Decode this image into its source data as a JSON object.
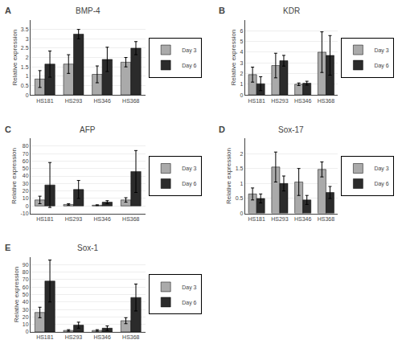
{
  "chart_data": [
    {
      "type": "bar",
      "title": "BMP-4",
      "annotation": "A",
      "categories": [
        "HS181",
        "HS293",
        "HS346",
        "HS368"
      ],
      "series": [
        {
          "name": "Day 3",
          "color": "#aaaaaa",
          "values": [
            0.85,
            1.65,
            1.1,
            1.75
          ],
          "errors": [
            0.45,
            0.5,
            0.45,
            0.25
          ]
        },
        {
          "name": "Day 6",
          "color": "#2b2b2b",
          "values": [
            1.65,
            3.25,
            1.9,
            2.5
          ],
          "errors": [
            0.7,
            0.25,
            0.65,
            0.35
          ]
        }
      ],
      "ylabel": "Relative expression",
      "ylim": [
        0,
        4
      ],
      "yticks": [
        0,
        0.5,
        1.0,
        1.5,
        2.0,
        2.5,
        3.0,
        3.5
      ],
      "grid": true,
      "legend": "right"
    },
    {
      "type": "bar",
      "title": "KDR",
      "annotation": "B",
      "categories": [
        "HS181",
        "HS293",
        "HS346",
        "HS368"
      ],
      "series": [
        {
          "name": "Day 3",
          "color": "#aaaaaa",
          "values": [
            1.9,
            2.75,
            1.0,
            4.0
          ],
          "errors": [
            0.7,
            1.15,
            0.12,
            1.9
          ]
        },
        {
          "name": "Day 6",
          "color": "#2b2b2b",
          "values": [
            1.05,
            3.2,
            1.1,
            3.7
          ],
          "errors": [
            0.65,
            0.5,
            0.18,
            1.85
          ]
        }
      ],
      "ylabel": "Relative expression",
      "ylim": [
        0,
        7
      ],
      "yticks": [
        0,
        1,
        2,
        3,
        4,
        5,
        6
      ],
      "grid": true,
      "legend": "right"
    },
    {
      "type": "bar",
      "title": "AFP",
      "annotation": "C",
      "categories": [
        "HS181",
        "HS293",
        "HS346",
        "HS368"
      ],
      "series": [
        {
          "name": "Day 3",
          "color": "#aaaaaa",
          "values": [
            8,
            2,
            1,
            8
          ],
          "errors": [
            5,
            1,
            0.5,
            3
          ]
        },
        {
          "name": "Day 6",
          "color": "#2b2b2b",
          "values": [
            28,
            22,
            5,
            46
          ],
          "errors": [
            30,
            12,
            2,
            28
          ]
        }
      ],
      "ylabel": "Relative expression",
      "ylim": [
        -10,
        90
      ],
      "yticks": [
        -10,
        0,
        10,
        20,
        30,
        40,
        50,
        60,
        70,
        80
      ],
      "grid": true,
      "legend": "right"
    },
    {
      "type": "bar",
      "title": "Sox-17",
      "annotation": "D",
      "categories": [
        "HS181",
        "HS293",
        "HS346",
        "HS368"
      ],
      "series": [
        {
          "name": "Day 3",
          "color": "#aaaaaa",
          "values": [
            0.65,
            1.55,
            1.05,
            1.47
          ],
          "errors": [
            0.2,
            0.5,
            0.45,
            0.25
          ]
        },
        {
          "name": "Day 6",
          "color": "#2b2b2b",
          "values": [
            0.5,
            1.0,
            0.45,
            0.7
          ],
          "errors": [
            0.15,
            0.25,
            0.15,
            0.2
          ]
        }
      ],
      "ylabel": "Relative expression",
      "ylim": [
        0,
        2.5
      ],
      "yticks": [
        0,
        0.5,
        1.0,
        1.5,
        2.0
      ],
      "grid": true,
      "legend": "right"
    },
    {
      "type": "bar",
      "title": "Sox-1",
      "annotation": "E",
      "categories": [
        "HS181",
        "HS293",
        "HS346",
        "HS368"
      ],
      "series": [
        {
          "name": "Day 3",
          "color": "#aaaaaa",
          "values": [
            26,
            2,
            2,
            15
          ],
          "errors": [
            7,
            1,
            1,
            4
          ]
        },
        {
          "name": "Day 6",
          "color": "#2b2b2b",
          "values": [
            68,
            9,
            5,
            46
          ],
          "errors": [
            28,
            4,
            3,
            18
          ]
        }
      ],
      "ylabel": "Relative expression",
      "ylim": [
        0,
        100
      ],
      "yticks": [
        0,
        10,
        20,
        30,
        40,
        50,
        60,
        70,
        80,
        90
      ],
      "grid": true,
      "legend": "right"
    }
  ]
}
